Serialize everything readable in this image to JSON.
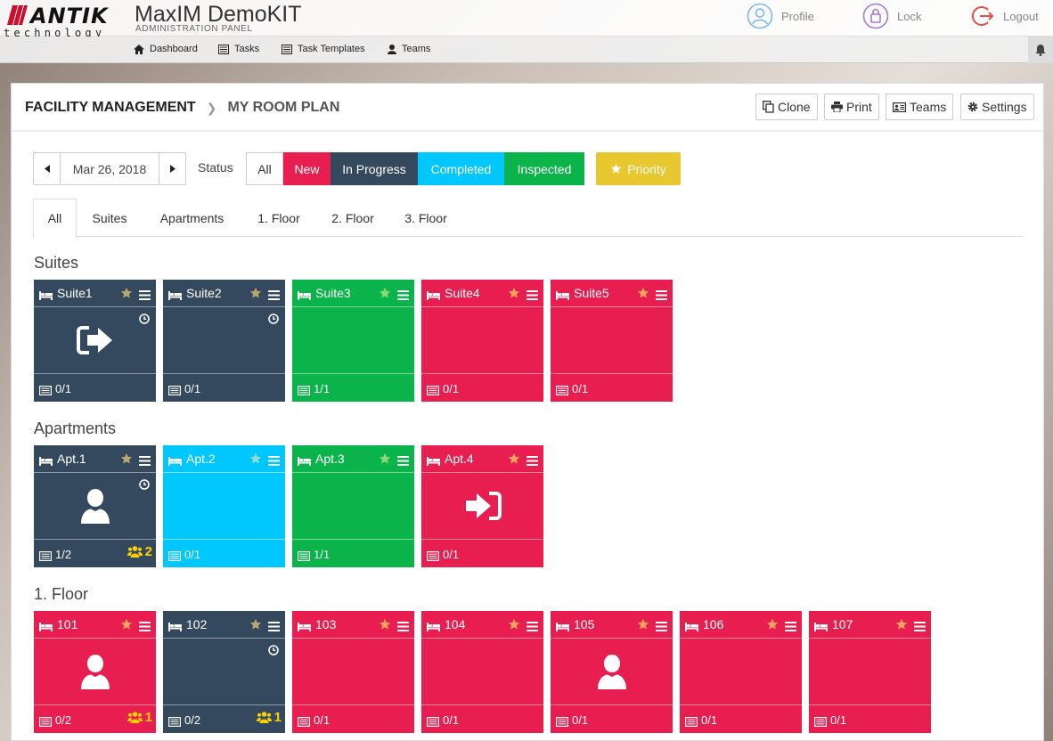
{
  "app": {
    "brand": "ANTIK",
    "brand_sub": "technology",
    "title": "MaxIM DemoKIT",
    "subtitle": "ADMINISTRATION PANEL"
  },
  "user_menu": {
    "profile": "Profile",
    "lock": "Lock",
    "logout": "Logout"
  },
  "nav": {
    "dashboard": "Dashboard",
    "tasks": "Tasks",
    "task_templates": "Task Templates",
    "teams": "Teams"
  },
  "breadcrumb": {
    "root": "FACILITY MANAGEMENT",
    "current": "MY ROOM PLAN"
  },
  "toolbar": {
    "clone": "Clone",
    "print": "Print",
    "teams": "Teams",
    "settings": "Settings"
  },
  "filters": {
    "date": "Mar 26, 2018",
    "status_label": "Status",
    "status_all": "All",
    "status_new": "New",
    "status_in_progress": "In Progress",
    "status_completed": "Completed",
    "status_inspected": "Inspected",
    "priority": "Priority"
  },
  "tabs": [
    "All",
    "Suites",
    "Apartments",
    "1. Floor",
    "2. Floor",
    "3. Floor"
  ],
  "colors": {
    "new": "#e91e50",
    "in_progress": "#34495e",
    "completed": "#00c8ff",
    "inspected": "#0ab44a",
    "priority": "#e8c72f",
    "team_badge": "#ffd000"
  },
  "sections": {
    "suites": {
      "title": "Suites",
      "rooms": [
        {
          "name": "Suite1",
          "count": "0/1",
          "status": "in_progress",
          "clock": true,
          "icon": "checkout-icon"
        },
        {
          "name": "Suite2",
          "count": "0/1",
          "status": "in_progress",
          "clock": true
        },
        {
          "name": "Suite3",
          "count": "1/1",
          "status": "inspected"
        },
        {
          "name": "Suite4",
          "count": "0/1",
          "status": "new"
        },
        {
          "name": "Suite5",
          "count": "0/1",
          "status": "new"
        }
      ]
    },
    "apartments": {
      "title": "Apartments",
      "rooms": [
        {
          "name": "Apt.1",
          "count": "1/2",
          "status": "in_progress",
          "clock": true,
          "icon": "user-icon",
          "team": "2"
        },
        {
          "name": "Apt.2",
          "count": "0/1",
          "status": "completed"
        },
        {
          "name": "Apt.3",
          "count": "1/1",
          "status": "inspected"
        },
        {
          "name": "Apt.4",
          "count": "0/1",
          "status": "new",
          "icon": "checkin-icon"
        }
      ]
    },
    "floor1": {
      "title": "1. Floor",
      "rooms": [
        {
          "name": "101",
          "count": "0/2",
          "status": "new",
          "icon": "user-icon",
          "team": "1"
        },
        {
          "name": "102",
          "count": "0/2",
          "status": "in_progress",
          "clock": true,
          "team": "1"
        },
        {
          "name": "103",
          "count": "0/1",
          "status": "new"
        },
        {
          "name": "104",
          "count": "0/1",
          "status": "new"
        },
        {
          "name": "105",
          "count": "0/1",
          "status": "new",
          "icon": "user-icon"
        },
        {
          "name": "106",
          "count": "0/1",
          "status": "new"
        },
        {
          "name": "107",
          "count": "0/1",
          "status": "new"
        }
      ]
    }
  }
}
